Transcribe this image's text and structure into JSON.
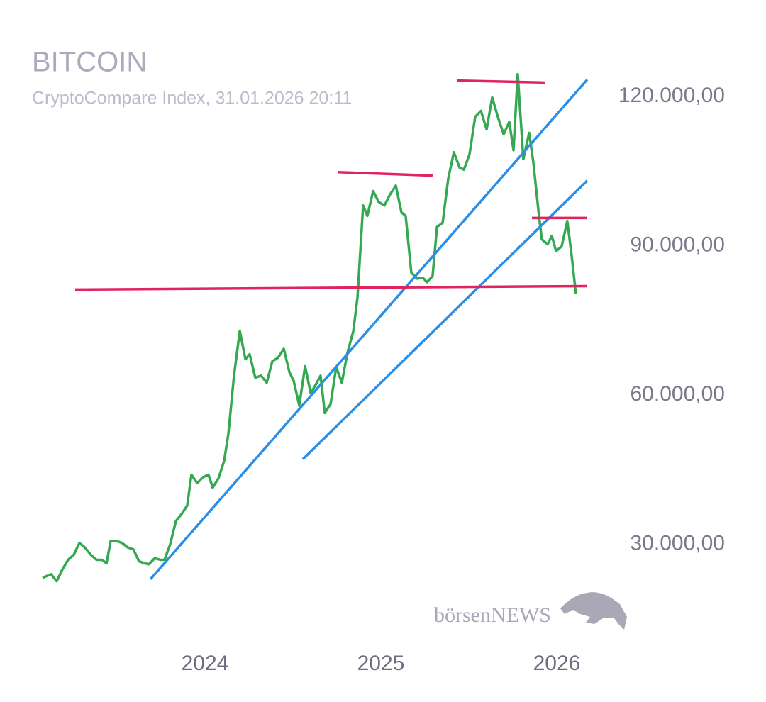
{
  "chart_data": {
    "type": "line",
    "title": "BITCOIN",
    "subtitle": "CryptoCompare Index, 31.01.2026 20:11",
    "watermark": "börsenNEWS",
    "xlim": [
      2023.0,
      2026.25
    ],
    "xticks": [
      2024,
      2025,
      2026
    ],
    "ylim": [
      14000,
      125000
    ],
    "yticks": [
      {
        "value": 30000,
        "label": "30.000,00"
      },
      {
        "value": 60000,
        "label": "60.000,00"
      },
      {
        "value": 90000,
        "label": "90.000,00"
      },
      {
        "value": 120000,
        "label": "120.000,00"
      }
    ],
    "grid": false,
    "series": [
      {
        "color": "#34a853",
        "x": [
          2023.077,
          2023.125,
          2023.157,
          2023.19,
          2023.222,
          2023.254,
          2023.286,
          2023.319,
          2023.351,
          2023.383,
          2023.415,
          2023.44,
          2023.464,
          2023.496,
          2023.528,
          2023.56,
          2023.593,
          2023.625,
          2023.657,
          2023.681,
          2023.714,
          2023.746,
          2023.77,
          2023.802,
          2023.835,
          2023.867,
          2023.899,
          2023.923,
          2023.956,
          2023.988,
          2024.02,
          2024.044,
          2024.077,
          2024.109,
          2024.133,
          2024.165,
          2024.198,
          2024.23,
          2024.254,
          2024.286,
          2024.319,
          2024.351,
          2024.383,
          2024.415,
          2024.448,
          2024.48,
          2024.504,
          2024.536,
          2024.569,
          2024.601,
          2024.625,
          2024.657,
          2024.681,
          2024.714,
          2024.746,
          2024.778,
          2024.81,
          2024.843,
          2024.867,
          2024.899,
          2024.923,
          2024.956,
          2024.988,
          2025.02,
          2025.052,
          2025.085,
          2025.117,
          2025.141,
          2025.173,
          2025.206,
          2025.238,
          2025.262,
          2025.294,
          2025.319,
          2025.351,
          2025.383,
          2025.415,
          2025.448,
          2025.472,
          2025.504,
          2025.536,
          2025.569,
          2025.601,
          2025.633,
          2025.665,
          2025.698,
          2025.73,
          2025.754,
          2025.778,
          2025.81,
          2025.843,
          2025.867,
          2025.899,
          2025.915,
          2025.948,
          2025.972,
          2025.996,
          2026.028,
          2026.06,
          2026.085,
          2026.109
        ],
        "values": [
          23300,
          24000,
          22600,
          25000,
          26900,
          27900,
          30300,
          29300,
          27900,
          26900,
          26900,
          26200,
          30700,
          30700,
          30300,
          29400,
          29000,
          26600,
          26200,
          26000,
          27200,
          26900,
          26900,
          30000,
          34700,
          36100,
          37800,
          44000,
          42300,
          43500,
          44000,
          41400,
          43300,
          46800,
          52200,
          63900,
          72900,
          67200,
          68200,
          63500,
          63900,
          62500,
          66800,
          67500,
          69300,
          64600,
          62900,
          57900,
          65800,
          60400,
          61800,
          63900,
          56400,
          58200,
          65600,
          62500,
          68500,
          72800,
          79600,
          98100,
          96000,
          101000,
          98800,
          98100,
          100300,
          102100,
          96700,
          96000,
          84600,
          83400,
          83600,
          82700,
          83900,
          93800,
          94600,
          103500,
          108800,
          105700,
          105300,
          108400,
          115900,
          117100,
          113400,
          119800,
          115900,
          112400,
          114900,
          109200,
          124500,
          107400,
          112700,
          106700,
          96000,
          91300,
          90300,
          92000,
          88900,
          89900,
          95000,
          87900,
          80300
        ]
      }
    ],
    "lines": [
      {
        "color": "#2b8fe6",
        "x": [
          2023.69,
          2026.173
        ],
        "y": [
          23000,
          123400
        ]
      },
      {
        "color": "#2b8fe6",
        "x": [
          2024.556,
          2026.173
        ],
        "y": [
          47100,
          103100
        ]
      },
      {
        "color": "#e0245e",
        "x": [
          2023.262,
          2026.173
        ],
        "y": [
          81200,
          81900
        ]
      },
      {
        "color": "#e0245e",
        "x": [
          2024.758,
          2025.294
        ],
        "y": [
          104800,
          104100
        ]
      },
      {
        "color": "#e0245e",
        "x": [
          2025.435,
          2025.935
        ],
        "y": [
          123200,
          122800
        ]
      },
      {
        "color": "#e0245e",
        "x": [
          2025.859,
          2026.173
        ],
        "y": [
          95600,
          95600
        ]
      }
    ]
  }
}
